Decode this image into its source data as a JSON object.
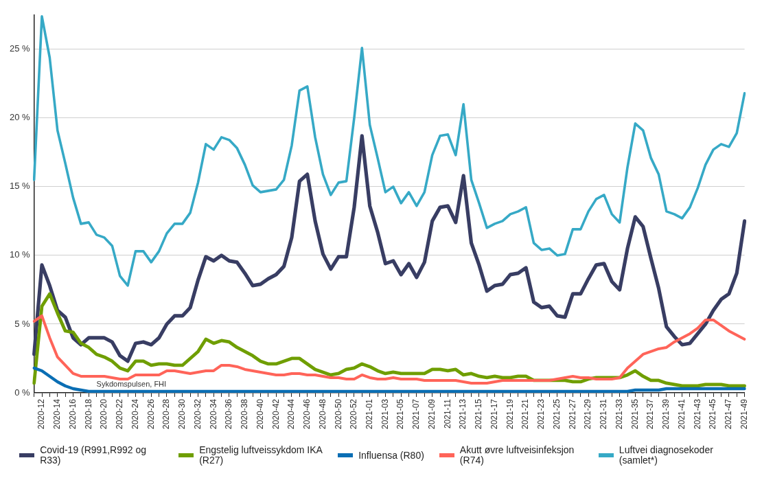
{
  "chart_data": {
    "type": "line",
    "categories": [
      null,
      "2020-12",
      null,
      "2020-14",
      null,
      "2020-16",
      null,
      "2020-18",
      null,
      "2020-20",
      null,
      "2020-22",
      null,
      "2020-24",
      null,
      "2020-26",
      null,
      "2020-28",
      null,
      "2020-30",
      null,
      "2020-32",
      null,
      "2020-34",
      null,
      "2020-36",
      null,
      "2020-38",
      null,
      "2020-40",
      null,
      "2020-42",
      null,
      "2020-44",
      null,
      "2020-46",
      null,
      "2020-48",
      null,
      "2020-50",
      null,
      "2020-52",
      null,
      "2021-01",
      null,
      "2021-03",
      null,
      "2021-05",
      null,
      "2021-07",
      null,
      "2021-09",
      null,
      "2021-11",
      null,
      "2021-13",
      null,
      "2021-15",
      null,
      "2021-17",
      null,
      "2021-19",
      null,
      "2021-21",
      null,
      "2021-23",
      null,
      "2021-25",
      null,
      "2021-27",
      null,
      "2021-29",
      null,
      "2021-31",
      null,
      "2021-33",
      null,
      "2021-35",
      null,
      "2021-37",
      null,
      "2021-39",
      null,
      "2021-41",
      null,
      "2021-43",
      null,
      "2021-45",
      null,
      "2021-47",
      null,
      "2021-49"
    ],
    "series": [
      {
        "name": "Covid-19 (R991,R992 og R33)",
        "color": "#383d63",
        "values": [
          2.8,
          9.3,
          7.8,
          6.0,
          5.5,
          4.0,
          3.5,
          4.0,
          4.0,
          4.0,
          3.7,
          2.7,
          2.3,
          3.6,
          3.7,
          3.5,
          4.0,
          5.0,
          5.6,
          5.6,
          6.2,
          8.2,
          9.9,
          9.6,
          10.0,
          9.6,
          9.5,
          8.7,
          7.8,
          7.9,
          8.3,
          8.6,
          9.2,
          11.3,
          15.4,
          15.9,
          12.5,
          10.1,
          9.0,
          9.9,
          9.9,
          13.5,
          18.7,
          13.6,
          11.7,
          9.4,
          9.6,
          8.6,
          9.4,
          8.4,
          9.5,
          12.5,
          13.5,
          13.6,
          12.4,
          15.8,
          10.9,
          9.3,
          7.4,
          7.8,
          7.9,
          8.6,
          8.7,
          9.1,
          6.6,
          6.2,
          6.3,
          5.6,
          5.5,
          7.2,
          7.2,
          8.3,
          9.3,
          9.4,
          8.1,
          7.5,
          10.5,
          12.8,
          12.1,
          9.8,
          7.6,
          4.8,
          4.1,
          3.5,
          3.6,
          4.3,
          5.0,
          6.0,
          6.8,
          7.2,
          8.7,
          12.5
        ]
      },
      {
        "name": "Engstelig luftveissykdom IKA (R27)",
        "color": "#6f9e00",
        "values": [
          0.7,
          6.3,
          7.2,
          5.8,
          4.5,
          4.4,
          3.6,
          3.3,
          2.8,
          2.6,
          2.3,
          1.8,
          1.6,
          2.3,
          2.3,
          2.0,
          2.1,
          2.1,
          2.0,
          2.0,
          2.5,
          3.0,
          3.9,
          3.6,
          3.8,
          3.7,
          3.3,
          3.0,
          2.7,
          2.3,
          2.1,
          2.1,
          2.3,
          2.5,
          2.5,
          2.1,
          1.7,
          1.5,
          1.3,
          1.4,
          1.7,
          1.8,
          2.1,
          1.9,
          1.6,
          1.4,
          1.5,
          1.4,
          1.4,
          1.4,
          1.4,
          1.7,
          1.7,
          1.6,
          1.7,
          1.3,
          1.4,
          1.2,
          1.1,
          1.2,
          1.1,
          1.1,
          1.2,
          1.2,
          0.9,
          0.9,
          0.9,
          0.9,
          0.9,
          0.8,
          0.8,
          1.0,
          1.1,
          1.1,
          1.1,
          1.1,
          1.3,
          1.6,
          1.2,
          0.9,
          0.9,
          0.7,
          0.6,
          0.5,
          0.5,
          0.5,
          0.6,
          0.6,
          0.6,
          0.5,
          0.5,
          0.5
        ]
      },
      {
        "name": "Influensa (R80)",
        "color": "#0a6eb4",
        "values": [
          1.8,
          1.6,
          1.2,
          0.8,
          0.5,
          0.3,
          0.2,
          0.1,
          0.1,
          0.1,
          0.1,
          0.1,
          0.1,
          0.1,
          0.1,
          0.1,
          0.1,
          0.1,
          0.1,
          0.1,
          0.1,
          0.1,
          0.1,
          0.1,
          0.1,
          0.1,
          0.1,
          0.1,
          0.1,
          0.1,
          0.1,
          0.1,
          0.1,
          0.1,
          0.1,
          0.1,
          0.1,
          0.1,
          0.1,
          0.1,
          0.1,
          0.1,
          0.1,
          0.1,
          0.1,
          0.1,
          0.1,
          0.1,
          0.1,
          0.1,
          0.1,
          0.1,
          0.1,
          0.1,
          0.1,
          0.1,
          0.1,
          0.1,
          0.1,
          0.1,
          0.1,
          0.1,
          0.1,
          0.1,
          0.1,
          0.1,
          0.1,
          0.1,
          0.1,
          0.1,
          0.1,
          0.1,
          0.1,
          0.1,
          0.1,
          0.1,
          0.1,
          0.2,
          0.2,
          0.2,
          0.2,
          0.3,
          0.3,
          0.3,
          0.3,
          0.3,
          0.3,
          0.3,
          0.3,
          0.3,
          0.3,
          0.3
        ]
      },
      {
        "name": "Akutt øvre luftveisinfeksjon (R74)",
        "color": "#ff6459",
        "values": [
          5.2,
          5.6,
          4.0,
          2.6,
          2.0,
          1.4,
          1.2,
          1.2,
          1.2,
          1.2,
          1.1,
          1.0,
          1.0,
          1.3,
          1.3,
          1.3,
          1.3,
          1.6,
          1.6,
          1.5,
          1.4,
          1.5,
          1.6,
          1.6,
          2.0,
          2.0,
          1.9,
          1.7,
          1.6,
          1.5,
          1.4,
          1.3,
          1.3,
          1.4,
          1.4,
          1.3,
          1.3,
          1.2,
          1.1,
          1.1,
          1.0,
          1.0,
          1.3,
          1.1,
          1.0,
          1.0,
          1.1,
          1.0,
          1.0,
          1.0,
          0.9,
          0.9,
          0.9,
          0.9,
          0.9,
          0.8,
          0.7,
          0.7,
          0.7,
          0.8,
          0.9,
          0.9,
          0.9,
          0.9,
          0.9,
          0.9,
          0.9,
          1.0,
          1.1,
          1.2,
          1.1,
          1.1,
          1.0,
          1.0,
          1.0,
          1.1,
          1.8,
          2.3,
          2.8,
          3.0,
          3.2,
          3.3,
          3.7,
          4.0,
          4.3,
          4.7,
          5.3,
          5.3,
          4.9,
          4.5,
          4.2,
          3.9
        ]
      },
      {
        "name": "Luftvei diagnosekoder (samlet*)",
        "color": "#36a9c6",
        "values": [
          15.5,
          27.4,
          24.4,
          19.1,
          16.7,
          14.2,
          12.3,
          12.4,
          11.5,
          11.3,
          10.7,
          8.5,
          7.8,
          10.3,
          10.3,
          9.5,
          10.3,
          11.6,
          12.3,
          12.3,
          13.1,
          15.3,
          18.1,
          17.7,
          18.6,
          18.4,
          17.8,
          16.6,
          15.1,
          14.6,
          14.7,
          14.8,
          15.5,
          18.0,
          22.0,
          22.3,
          18.6,
          15.9,
          14.4,
          15.3,
          15.4,
          20.0,
          25.1,
          19.5,
          17.1,
          14.6,
          15.0,
          13.8,
          14.6,
          13.6,
          14.6,
          17.3,
          18.7,
          18.8,
          17.3,
          21.0,
          15.5,
          13.8,
          12.0,
          12.3,
          12.5,
          13.0,
          13.2,
          13.5,
          10.9,
          10.4,
          10.5,
          10.0,
          10.1,
          11.9,
          11.9,
          13.2,
          14.1,
          14.4,
          13.0,
          12.4,
          16.4,
          19.6,
          19.1,
          17.1,
          15.9,
          13.2,
          13.0,
          12.7,
          13.5,
          14.9,
          16.6,
          17.7,
          18.1,
          17.9,
          18.9,
          21.8
        ]
      }
    ],
    "ylim": [
      0,
      27.5
    ],
    "yticks": [
      {
        "value": 0,
        "label": "0 %"
      },
      {
        "value": 5,
        "label": "5 %"
      },
      {
        "value": 10,
        "label": "10 %"
      },
      {
        "value": 15,
        "label": "15 %"
      },
      {
        "value": 20,
        "label": "20 %"
      },
      {
        "value": 25,
        "label": "25 %"
      }
    ],
    "grid": "y",
    "legend": "bottom",
    "marker": "none",
    "line_style": "solid",
    "annotations": [
      "Sykdomspulsen, FHI"
    ]
  }
}
